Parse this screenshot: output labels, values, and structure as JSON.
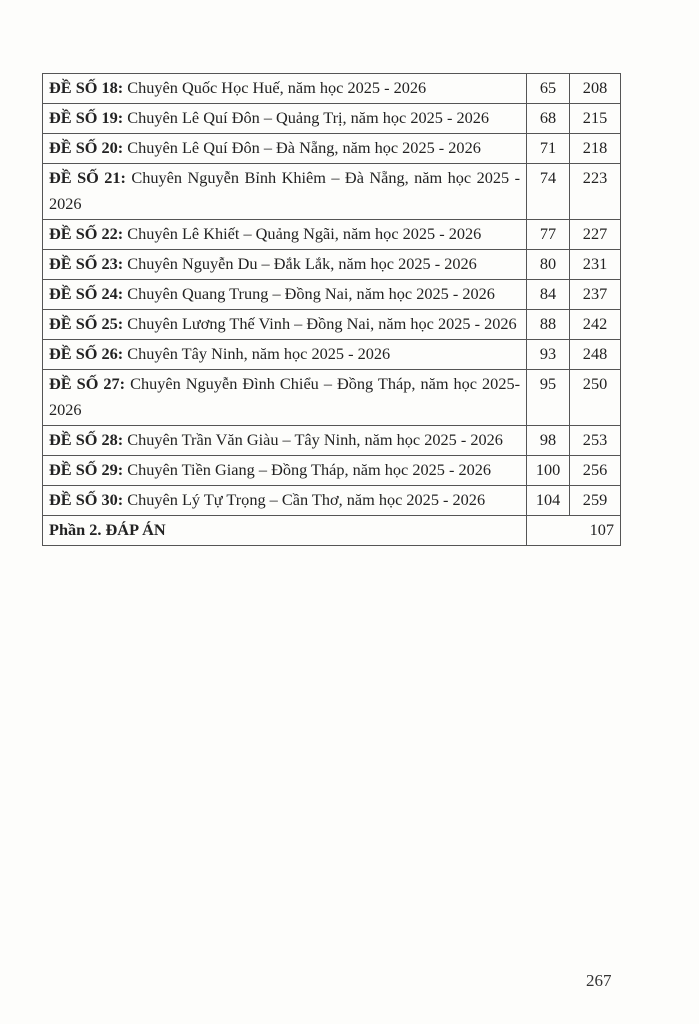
{
  "entries": [
    {
      "label": "ĐỀ SỐ 18:",
      "title": " Chuyên Quốc Học Huế, năm học 2025 - 2026",
      "page_exam": "65",
      "page_answer": "208"
    },
    {
      "label": "ĐỀ SỐ 19:",
      "title": " Chuyên Lê Quí Đôn – Quảng Trị, năm học 2025 - 2026",
      "page_exam": "68",
      "page_answer": "215"
    },
    {
      "label": "ĐỀ SỐ 20:",
      "title": " Chuyên Lê Quí Đôn – Đà Nẵng, năm học 2025 - 2026",
      "page_exam": "71",
      "page_answer": "218"
    },
    {
      "label": "ĐỀ SỐ 21:",
      "title": " Chuyên Nguyễn Bỉnh Khiêm – Đà Nẵng, năm học 2025 - 2026",
      "page_exam": "74",
      "page_answer": "223"
    },
    {
      "label": "ĐỀ SỐ 22:",
      "title": " Chuyên Lê Khiết – Quảng Ngãi, năm học 2025 - 2026",
      "page_exam": "77",
      "page_answer": "227"
    },
    {
      "label": "ĐỀ SỐ 23:",
      "title": " Chuyên Nguyễn Du – Đắk Lắk, năm học 2025 - 2026",
      "page_exam": "80",
      "page_answer": "231"
    },
    {
      "label": "ĐỀ SỐ 24:",
      "title": " Chuyên Quang Trung – Đồng Nai, năm học 2025 - 2026",
      "page_exam": "84",
      "page_answer": "237"
    },
    {
      "label": "ĐỀ SỐ 25:",
      "title": " Chuyên Lương Thế Vinh – Đồng Nai, năm học 2025 - 2026",
      "page_exam": "88",
      "page_answer": "242"
    },
    {
      "label": "ĐỀ SỐ 26:",
      "title": " Chuyên Tây Ninh, năm học 2025 - 2026",
      "page_exam": "93",
      "page_answer": "248"
    },
    {
      "label": "ĐỀ SỐ 27:",
      "title": " Chuyên Nguyễn Đình Chiểu – Đồng Tháp, năm học 2025-2026",
      "page_exam": "95",
      "page_answer": "250"
    },
    {
      "label": "ĐỀ SỐ 28:",
      "title": " Chuyên Trần Văn Giàu – Tây Ninh, năm học 2025 - 2026",
      "page_exam": "98",
      "page_answer": "253"
    },
    {
      "label": "ĐỀ SỐ 29:",
      "title": " Chuyên Tiền Giang – Đồng Tháp, năm học 2025 - 2026",
      "page_exam": "100",
      "page_answer": "256"
    },
    {
      "label": "ĐỀ SỐ 30:",
      "title": " Chuyên Lý Tự Trọng – Cần Thơ, năm học 2025 - 2026",
      "page_exam": "104",
      "page_answer": "259"
    }
  ],
  "section": {
    "label": "Phần 2. ĐÁP ÁN",
    "page": "107"
  },
  "page_number": "267"
}
